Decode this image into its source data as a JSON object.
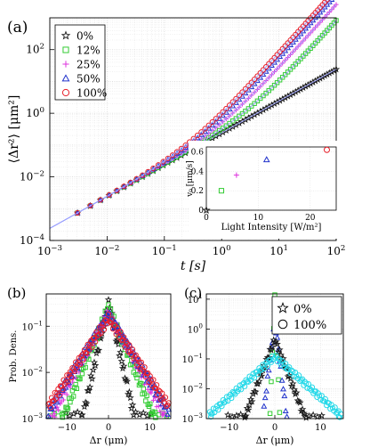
{
  "panels": {
    "a": "(a)",
    "b": "(b)",
    "c": "(c)"
  },
  "colors": {
    "p0": "#1a1a1a",
    "p12": "#33cc33",
    "p25": "#dd33dd",
    "p50": "#2233cc",
    "p100": "#e8202a",
    "c0": "#1a1a1a",
    "c100": "#22d8e8",
    "grid": "#d9d9d9",
    "fitLine": "#9aa0ff"
  },
  "chart_data": [
    {
      "id": "msd",
      "type": "scatter",
      "xscale": "log",
      "yscale": "log",
      "xlim": [
        0.001,
        100
      ],
      "ylim": [
        0.0001,
        1000
      ],
      "xlabel": "t [s]",
      "ylabel": "⟨Δr²⟩ [μm²]",
      "xticks": [
        {
          "v": 0.001,
          "b": "10",
          "e": "−3"
        },
        {
          "v": 0.01,
          "b": "10",
          "e": "−2"
        },
        {
          "v": 0.1,
          "b": "10",
          "e": "−1"
        },
        {
          "v": 1,
          "b": "10",
          "e": "0"
        },
        {
          "v": 10,
          "b": "10",
          "e": "1"
        },
        {
          "v": 100,
          "b": "10",
          "e": "2"
        }
      ],
      "yticks": [
        {
          "v": 0.0001,
          "b": "10",
          "e": "−4"
        },
        {
          "v": 0.01,
          "b": "10",
          "e": "−2"
        },
        {
          "v": 1,
          "b": "10",
          "e": "0"
        },
        {
          "v": 100,
          "b": "10",
          "e": "2"
        }
      ],
      "grid": true,
      "legend_position": "top-left",
      "series": [
        {
          "name": "0%",
          "marker": "star",
          "color": "#1a1a1a",
          "D": 0.06,
          "v": 0.0
        },
        {
          "name": "12%",
          "marker": "square",
          "color": "#33cc33",
          "D": 0.06,
          "v": 0.2
        },
        {
          "name": "25%",
          "marker": "plus",
          "color": "#dd33dd",
          "D": 0.06,
          "v": 0.36
        },
        {
          "name": "50%",
          "marker": "triangle",
          "color": "#2233cc",
          "D": 0.06,
          "v": 0.52
        },
        {
          "name": "100%",
          "marker": "circle",
          "color": "#e8202a",
          "D": 0.06,
          "v": 0.62
        }
      ]
    },
    {
      "id": "inset",
      "type": "scatter",
      "xlim": [
        0,
        25
      ],
      "ylim": [
        0,
        0.65
      ],
      "xlabel": "Light Intensity [W/m²]",
      "ylabel": "v₀ [μm/s]",
      "xticks": [
        0,
        10,
        20
      ],
      "yticks": [
        0,
        0.2,
        0.4,
        0.6
      ],
      "points": [
        {
          "x": 0,
          "y": 0.0,
          "marker": "star",
          "color": "#1a1a1a"
        },
        {
          "x": 2.9,
          "y": 0.2,
          "marker": "square",
          "color": "#33cc33"
        },
        {
          "x": 5.8,
          "y": 0.36,
          "marker": "plus",
          "color": "#dd33dd"
        },
        {
          "x": 11.6,
          "y": 0.52,
          "marker": "triangle",
          "color": "#2233cc"
        },
        {
          "x": 23.2,
          "y": 0.62,
          "marker": "circle",
          "color": "#e8202a"
        }
      ]
    },
    {
      "id": "pdf_b",
      "type": "scatter",
      "yscale": "log",
      "xlim": [
        -15,
        15
      ],
      "ylim": [
        0.001,
        0.5
      ],
      "xlabel": "Δr (μm)",
      "ylabel": "Prob. Dens.",
      "xticks": [
        -10,
        0,
        10
      ],
      "yticks": [
        {
          "v": 0.001,
          "b": "10",
          "e": "−3"
        },
        {
          "v": 0.01,
          "b": "10",
          "e": "−2"
        },
        {
          "v": 0.1,
          "b": "10",
          "e": "−1"
        }
      ],
      "series": [
        {
          "name": "0%",
          "marker": "star",
          "color": "#1a1a1a",
          "peak": 0.32,
          "scale": 1.1
        },
        {
          "name": "12%",
          "marker": "square",
          "color": "#33cc33",
          "peak": 0.26,
          "scale": 2.0
        },
        {
          "name": "25%",
          "marker": "plus",
          "color": "#dd33dd",
          "peak": 0.2,
          "scale": 2.6
        },
        {
          "name": "50%",
          "marker": "triangle",
          "color": "#2233cc",
          "peak": 0.18,
          "scale": 3.0
        },
        {
          "name": "100%",
          "marker": "circle",
          "color": "#e8202a",
          "peak": 0.15,
          "scale": 3.3
        }
      ]
    },
    {
      "id": "pdf_c",
      "type": "scatter",
      "yscale": "log",
      "xlim": [
        -15,
        15
      ],
      "ylim": [
        0.001,
        15
      ],
      "xlabel": "Δr (μm)",
      "xticks": [
        -10,
        0,
        10
      ],
      "yticks": [
        {
          "v": 0.001,
          "b": "10",
          "e": "−3"
        },
        {
          "v": 0.01,
          "b": "10",
          "e": "−2"
        },
        {
          "v": 0.1,
          "b": "10",
          "e": "−1"
        },
        {
          "v": 1,
          "b": "10",
          "e": "0"
        },
        {
          "v": 10,
          "b": "10",
          "e": "1"
        }
      ],
      "legend_position": "top-right",
      "legend": [
        {
          "name": "0%",
          "marker": "star"
        },
        {
          "name": "100%",
          "marker": "circle"
        }
      ],
      "series": [
        {
          "marker": "square",
          "color": "#33cc33",
          "peak": 12.0,
          "scale": 0.12
        },
        {
          "marker": "triangle",
          "color": "#2233cc",
          "peak": 2.0,
          "scale": 0.35
        },
        {
          "marker": "star",
          "color": "#1a1a1a",
          "peak": 0.45,
          "scale": 1.1
        },
        {
          "marker": "circle",
          "color": "#22d8e8",
          "peak": 0.12,
          "scale": 3.2
        }
      ]
    }
  ]
}
